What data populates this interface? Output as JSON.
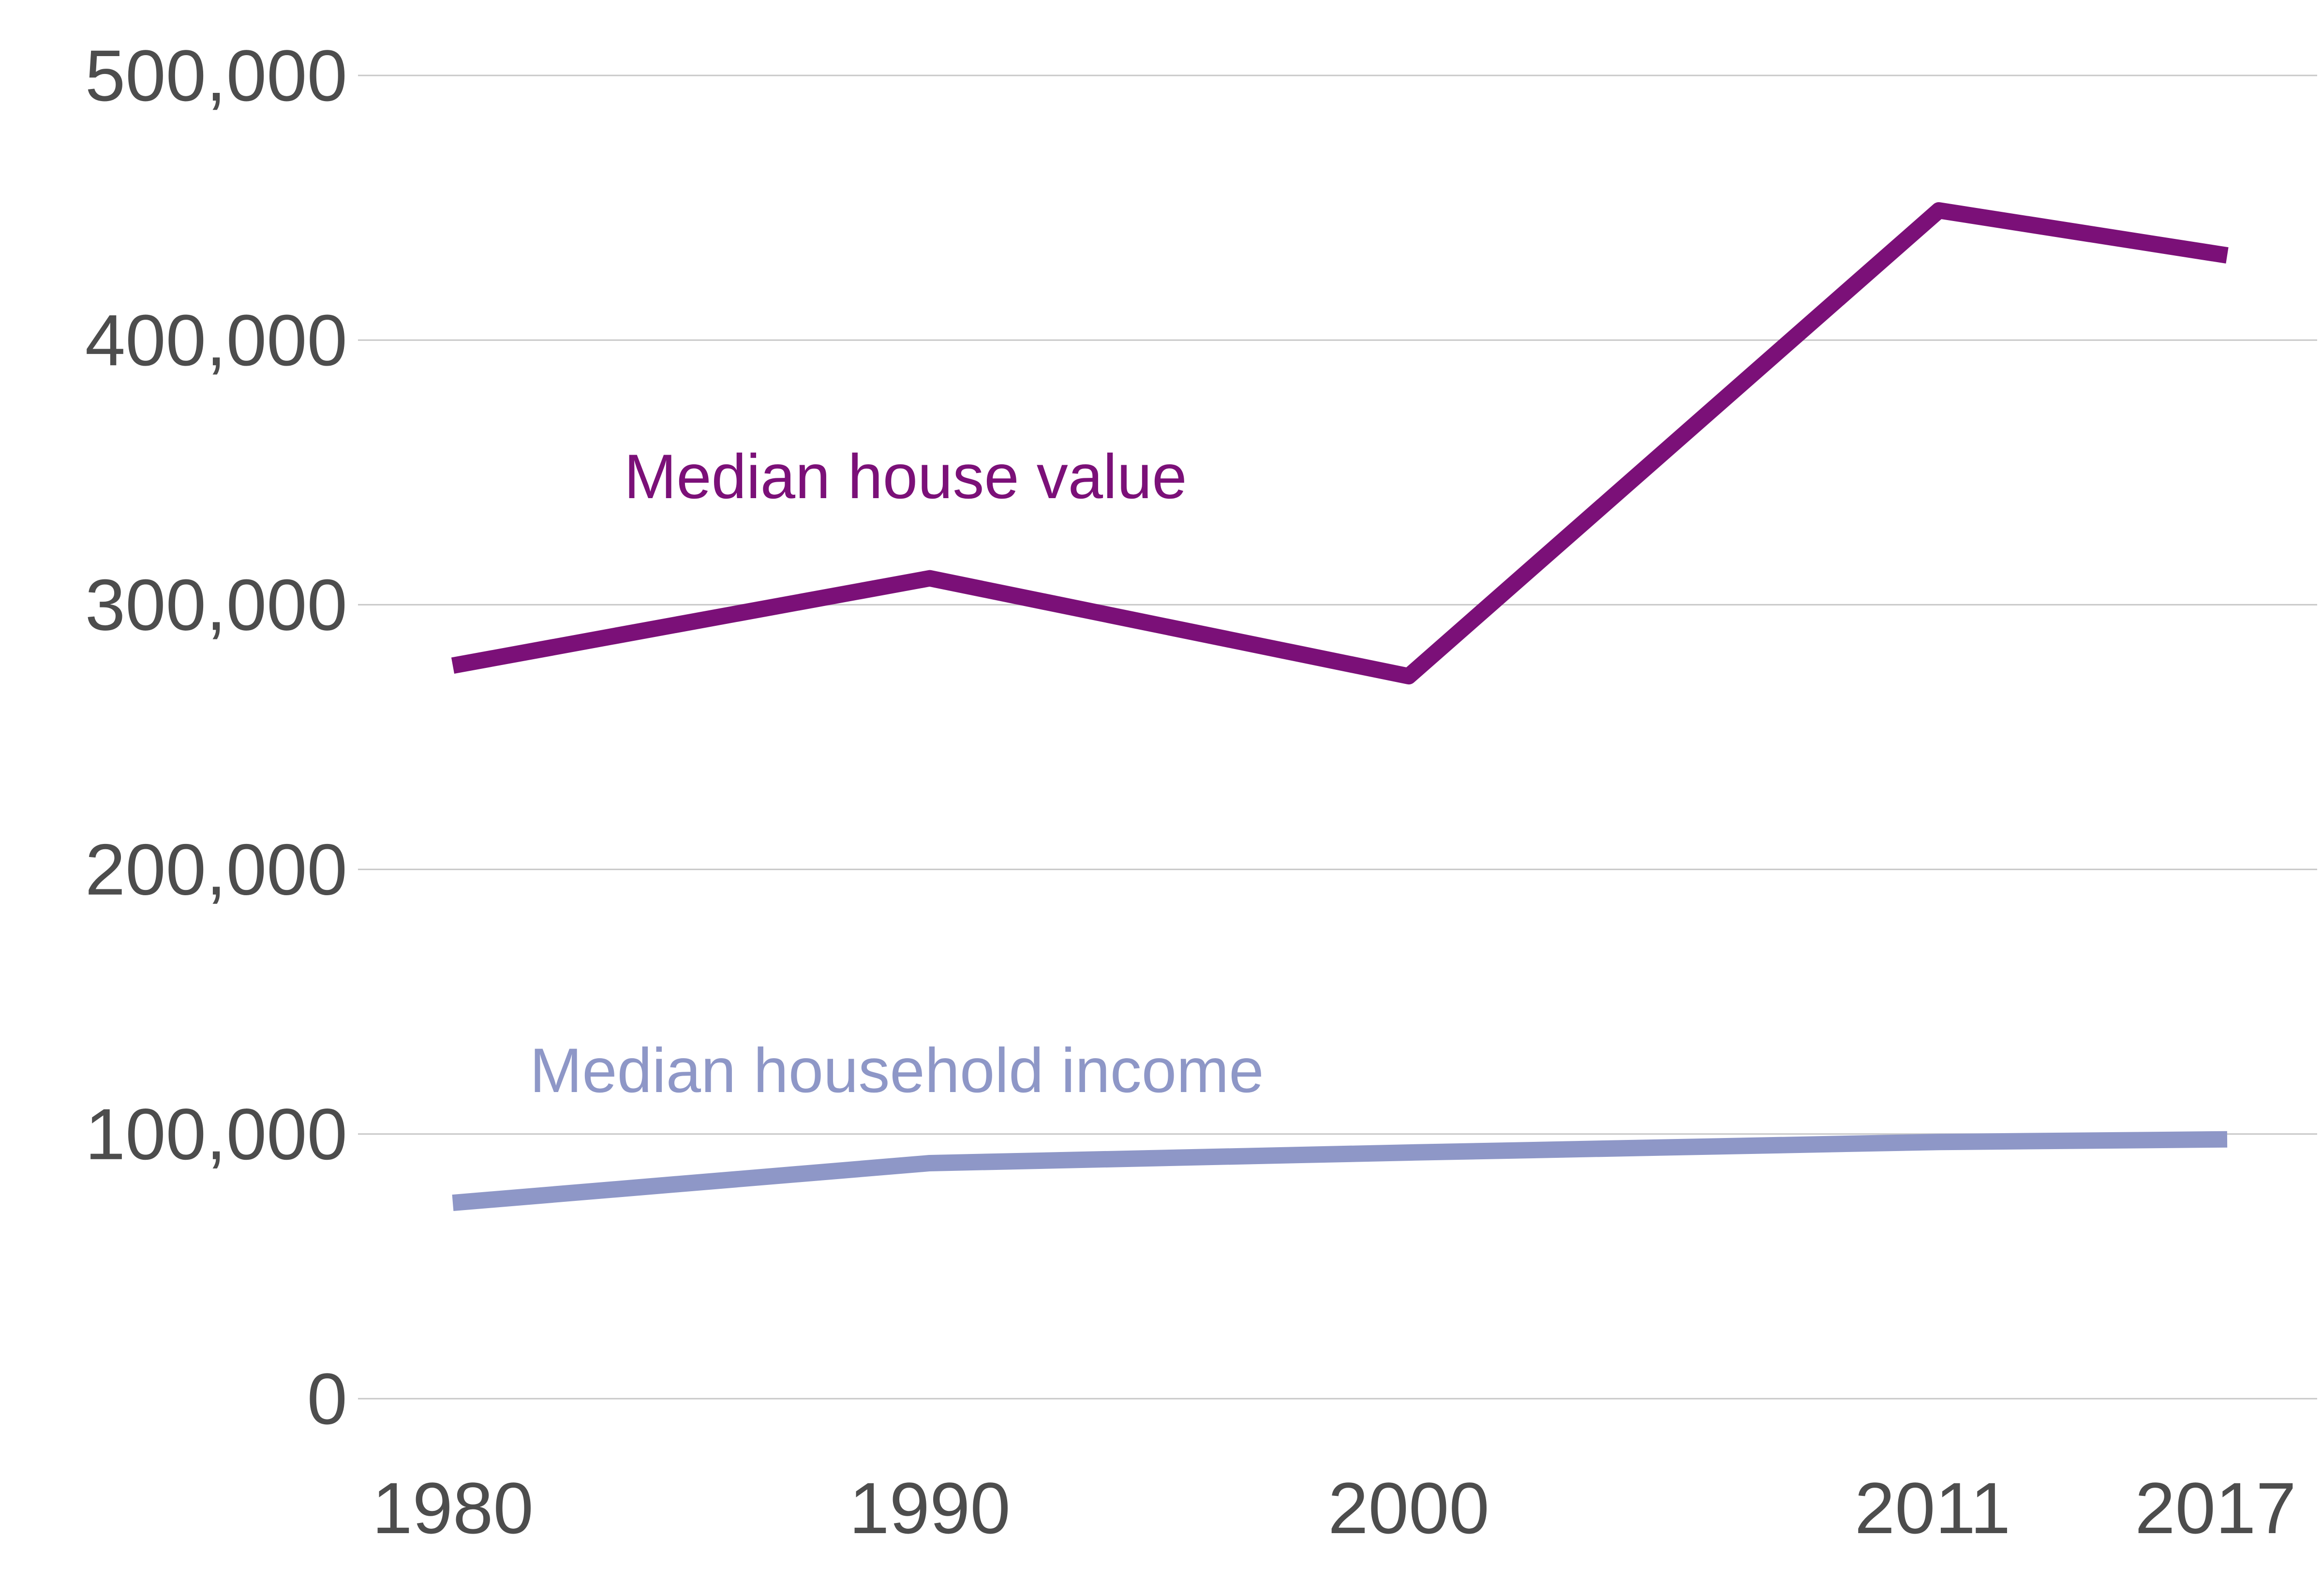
{
  "chart_data": {
    "type": "line",
    "title": "",
    "xlabel": "",
    "ylabel": "",
    "x": [
      1980,
      1990,
      2000,
      2011,
      2017
    ],
    "x_tick_labels": [
      "1980",
      "1990",
      "2000",
      "2011",
      "2017"
    ],
    "ylim": [
      0,
      500000
    ],
    "y_ticks": [
      0,
      100000,
      200000,
      300000,
      400000,
      500000
    ],
    "y_tick_labels": [
      "0",
      "100,000",
      "200,000",
      "300,000",
      "400,000",
      "500,000"
    ],
    "grid": true,
    "legend": "inline labels",
    "series": [
      {
        "name": "Median house value",
        "values": [
          277000,
          310000,
          273000,
          449000,
          432000
        ],
        "color": "#7b1078"
      },
      {
        "name": "Median household income",
        "values": [
          74000,
          89000,
          93000,
          97000,
          98000
        ],
        "color": "#8e97c7"
      }
    ]
  }
}
